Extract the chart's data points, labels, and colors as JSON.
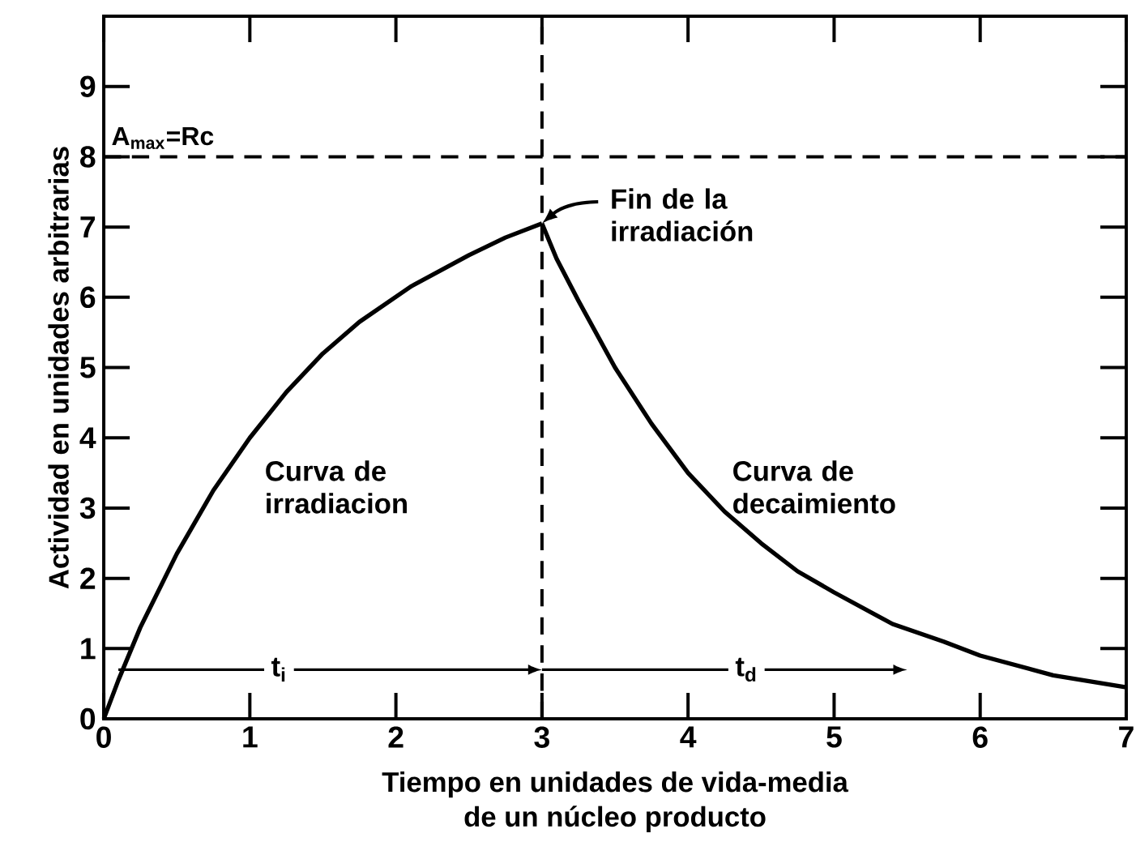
{
  "chart_data": {
    "type": "line",
    "xlabel": "Tiempo en unidades de vida-media\nde un núcleo producto",
    "ylabel": "Actividad en unidades arbitrarias",
    "series": [
      {
        "color": "#000000",
        "x": [
          0,
          0.1,
          0.25,
          0.5,
          0.75,
          1,
          1.25,
          1.5,
          1.75,
          2.1,
          2.5,
          2.75,
          3
        ],
        "values": [
          0,
          0.55,
          1.3,
          2.35,
          3.25,
          4.0,
          4.65,
          5.2,
          5.65,
          6.15,
          6.6,
          6.85,
          7.05
        ]
      },
      {
        "color": "#000000",
        "x": [
          3,
          3.1,
          3.25,
          3.5,
          3.75,
          4,
          4.25,
          4.5,
          4.75,
          5,
          5.4,
          5.75,
          6,
          6.5,
          7
        ],
        "values": [
          7.05,
          6.55,
          5.95,
          5.0,
          4.2,
          3.5,
          2.95,
          2.5,
          2.1,
          1.8,
          1.35,
          1.1,
          0.9,
          0.62,
          0.45
        ]
      }
    ],
    "xlim": [
      0,
      7
    ],
    "ylim": [
      0,
      10
    ],
    "xticks": [
      0,
      1,
      2,
      3,
      4,
      5,
      6,
      7
    ],
    "yticks": [
      0,
      1,
      2,
      3,
      4,
      5,
      6,
      7,
      8,
      9
    ],
    "ref_lines": [
      {
        "axis": "y",
        "value": 8,
        "label": "A$_{max}$=Rc",
        "line_style": "dashed",
        "color": "#000000"
      },
      {
        "axis": "x",
        "value": 3,
        "line_style": "dashed",
        "color": "#000000"
      }
    ],
    "annotations": [
      {
        "text": "Fin de la irradiación",
        "x": 3,
        "y": 7.05
      },
      "Curva de irradiacion",
      "Curva de decaimiento",
      {
        "text": "t$_{i}$",
        "x": 1.2,
        "y": 0.7
      },
      {
        "text": "t$_{d}$",
        "x": 4.4,
        "y": 0.7
      }
    ],
    "grid": false,
    "marker": "none",
    "line_style": "solid"
  }
}
